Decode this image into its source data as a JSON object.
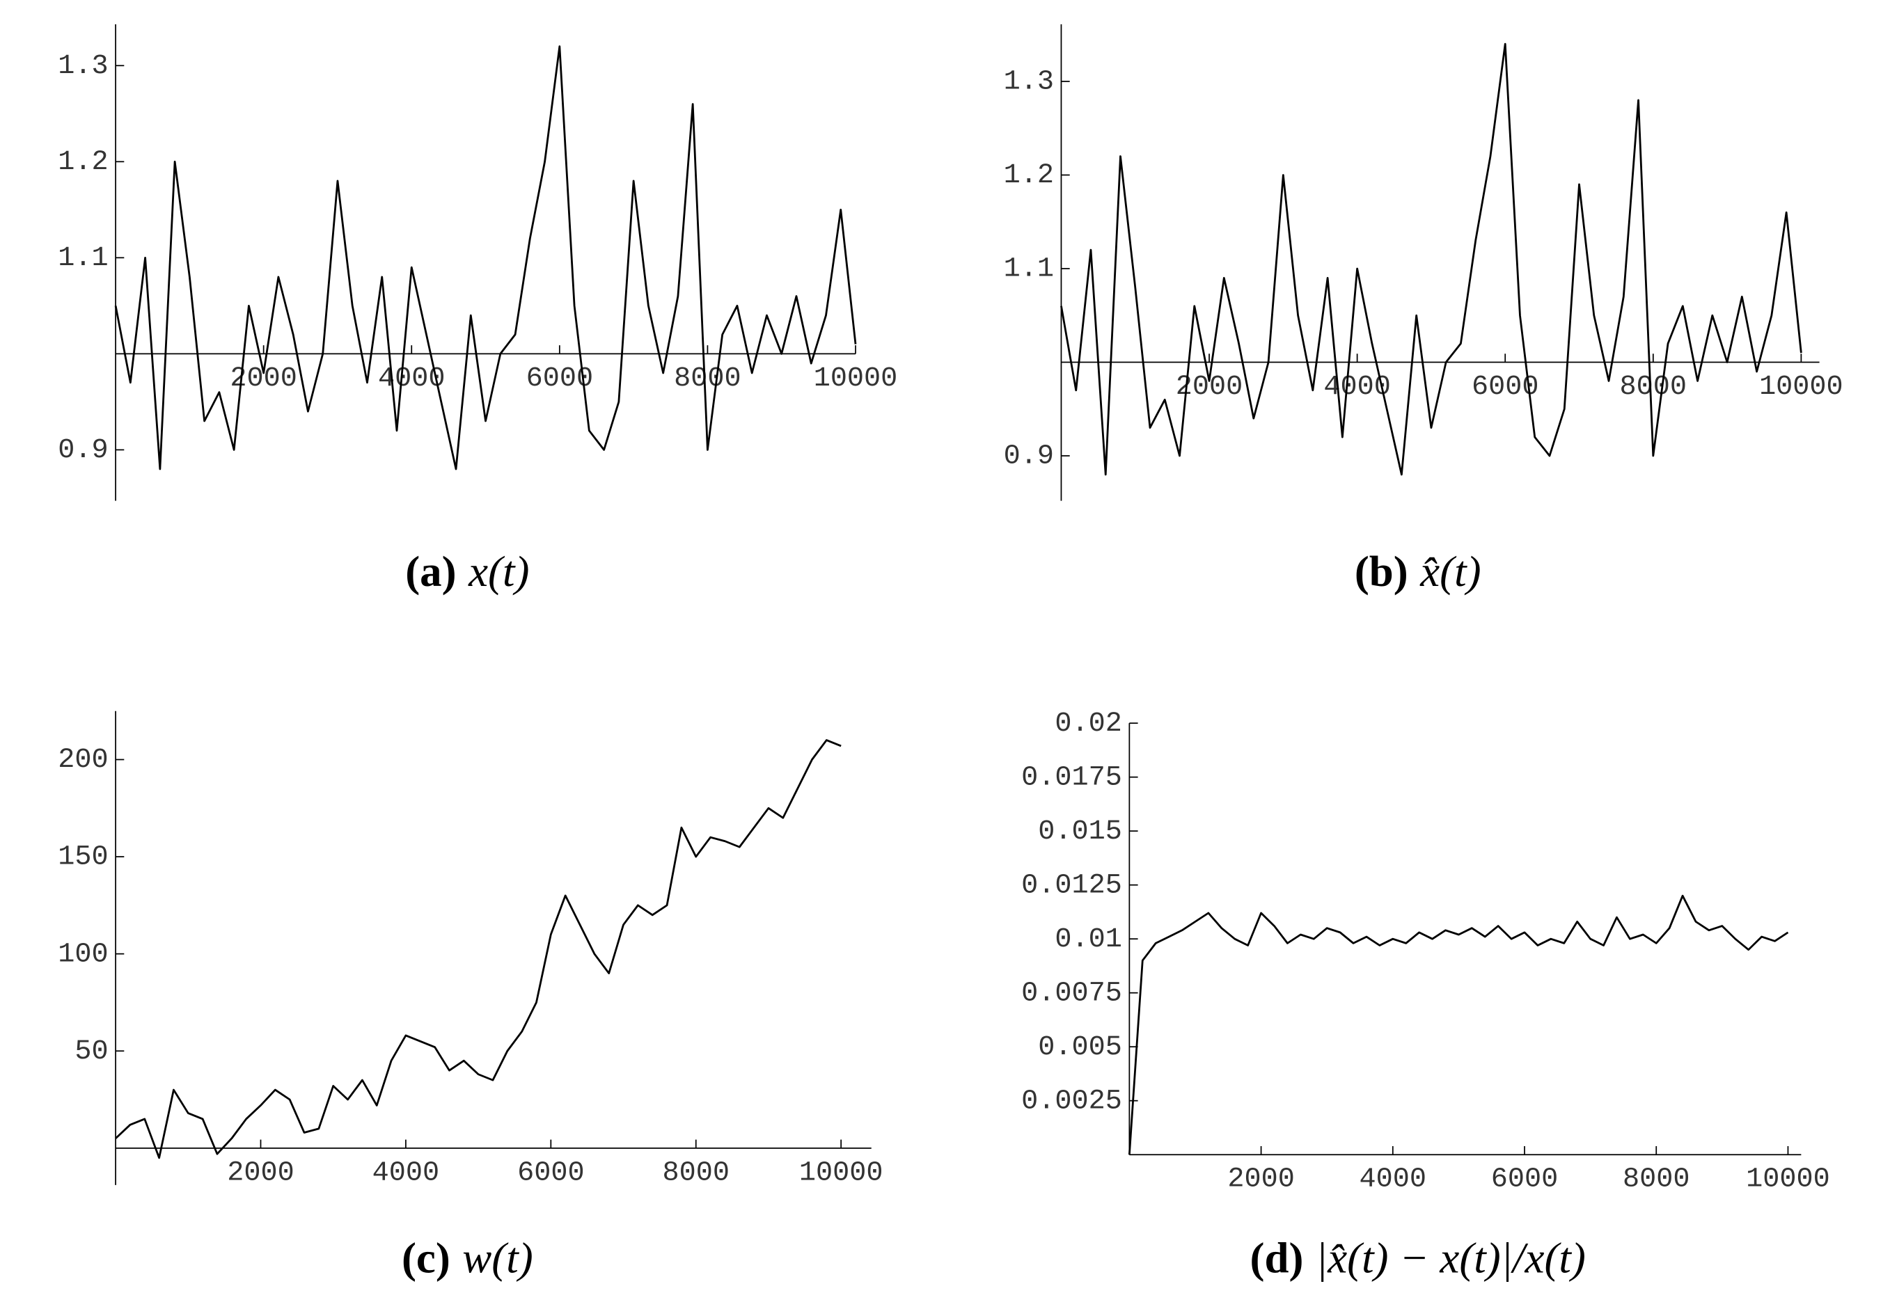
{
  "chart_data": [
    {
      "type": "line",
      "caption_label": "(a)",
      "caption": "x(t)",
      "x": [
        0,
        200,
        400,
        600,
        800,
        1000,
        1200,
        1400,
        1600,
        1800,
        2000,
        2200,
        2400,
        2600,
        2800,
        3000,
        3200,
        3400,
        3600,
        3800,
        4000,
        4200,
        4400,
        4600,
        4800,
        5000,
        5200,
        5400,
        5600,
        5800,
        6000,
        6200,
        6400,
        6600,
        6800,
        7000,
        7200,
        7400,
        7600,
        7800,
        8000,
        8200,
        8400,
        8600,
        8800,
        9000,
        9200,
        9400,
        9600,
        9800,
        10000
      ],
      "values": [
        1.05,
        0.97,
        1.1,
        0.88,
        1.2,
        1.08,
        0.93,
        0.96,
        0.9,
        1.05,
        0.98,
        1.08,
        1.02,
        0.94,
        1.0,
        1.18,
        1.05,
        0.97,
        1.08,
        0.92,
        1.09,
        1.02,
        0.95,
        0.88,
        1.04,
        0.93,
        1.0,
        1.02,
        1.12,
        1.2,
        1.32,
        1.05,
        0.92,
        0.9,
        0.95,
        1.18,
        1.05,
        0.98,
        1.06,
        1.26,
        0.9,
        1.02,
        1.05,
        0.98,
        1.04,
        1.0,
        1.06,
        0.99,
        1.04,
        1.15,
        1.01
      ],
      "color": "#000000",
      "xlim": [
        0,
        10000
      ],
      "ylim": [
        0.847,
        1.343
      ],
      "xticks": [
        2000,
        4000,
        6000,
        8000,
        10000
      ],
      "yticks": [
        0.9,
        1.1,
        1.2,
        1.3
      ],
      "x_axis_position": 1
    },
    {
      "type": "line",
      "caption_label": "(b)",
      "caption": "x̂(t)",
      "x": [
        0,
        200,
        400,
        600,
        800,
        1000,
        1200,
        1400,
        1600,
        1800,
        2000,
        2200,
        2400,
        2600,
        2800,
        3000,
        3200,
        3400,
        3600,
        3800,
        4000,
        4200,
        4400,
        4600,
        4800,
        5000,
        5200,
        5400,
        5600,
        5800,
        6000,
        6200,
        6400,
        6600,
        6800,
        7000,
        7200,
        7400,
        7600,
        7800,
        8000,
        8200,
        8400,
        8600,
        8800,
        9000,
        9200,
        9400,
        9600,
        9800,
        10000
      ],
      "values": [
        1.06,
        0.97,
        1.12,
        0.88,
        1.22,
        1.08,
        0.93,
        0.96,
        0.9,
        1.06,
        0.98,
        1.09,
        1.02,
        0.94,
        1.0,
        1.2,
        1.05,
        0.97,
        1.09,
        0.92,
        1.1,
        1.02,
        0.95,
        0.88,
        1.05,
        0.93,
        1.0,
        1.02,
        1.13,
        1.22,
        1.34,
        1.05,
        0.92,
        0.9,
        0.95,
        1.19,
        1.05,
        0.98,
        1.07,
        1.28,
        0.9,
        1.02,
        1.06,
        0.98,
        1.05,
        1.0,
        1.07,
        0.99,
        1.05,
        1.16,
        1.01
      ],
      "color": "#000000",
      "xlim": [
        0,
        10000
      ],
      "ylim": [
        0.852,
        1.361
      ],
      "xticks": [
        2000,
        4000,
        6000,
        8000,
        10000
      ],
      "yticks": [
        0.9,
        1.1,
        1.2,
        1.3
      ],
      "x_axis_position": 1
    },
    {
      "type": "line",
      "caption_label": "(c)",
      "caption": "w(t)",
      "x": [
        0,
        200,
        400,
        600,
        800,
        1000,
        1200,
        1400,
        1600,
        1800,
        2000,
        2200,
        2400,
        2600,
        2800,
        3000,
        3200,
        3400,
        3600,
        3800,
        4000,
        4200,
        4400,
        4600,
        4800,
        5000,
        5200,
        5400,
        5600,
        5800,
        6000,
        6200,
        6400,
        6600,
        6800,
        7000,
        7200,
        7400,
        7600,
        7800,
        8000,
        8200,
        8400,
        8600,
        8800,
        9000,
        9200,
        9400,
        9600,
        9800,
        10000
      ],
      "values": [
        5,
        12,
        15,
        -5,
        30,
        18,
        15,
        -3,
        5,
        15,
        22,
        30,
        25,
        8,
        10,
        32,
        25,
        35,
        22,
        45,
        58,
        55,
        52,
        40,
        45,
        38,
        35,
        50,
        60,
        75,
        110,
        130,
        115,
        100,
        90,
        115,
        125,
        120,
        125,
        165,
        150,
        160,
        158,
        155,
        165,
        175,
        170,
        185,
        200,
        210,
        207
      ],
      "color": "#000000",
      "xlim": [
        0,
        10200
      ],
      "ylim": [
        -19,
        225
      ],
      "xticks": [
        2000,
        4000,
        6000,
        8000,
        10000
      ],
      "yticks": [
        50,
        100,
        150,
        200
      ],
      "x_axis_position": 0
    },
    {
      "type": "line",
      "caption_label": "(d)",
      "caption": "|x̂(t) − x(t)|/x(t)",
      "x": [
        0,
        200,
        400,
        600,
        800,
        1000,
        1200,
        1400,
        1600,
        1800,
        2000,
        2200,
        2400,
        2600,
        2800,
        3000,
        3200,
        3400,
        3600,
        3800,
        4000,
        4200,
        4400,
        4600,
        4800,
        5000,
        5200,
        5400,
        5600,
        5800,
        6000,
        6200,
        6400,
        6600,
        6800,
        7000,
        7200,
        7400,
        7600,
        7800,
        8000,
        8200,
        8400,
        8600,
        8800,
        9000,
        9200,
        9400,
        9600,
        9800,
        10000
      ],
      "values": [
        0,
        0.009,
        0.0098,
        0.0101,
        0.0104,
        0.0108,
        0.0112,
        0.0105,
        0.01,
        0.0097,
        0.0112,
        0.0106,
        0.0098,
        0.0102,
        0.01,
        0.0105,
        0.0103,
        0.0098,
        0.0101,
        0.0097,
        0.01,
        0.0098,
        0.0103,
        0.01,
        0.0104,
        0.0102,
        0.0105,
        0.0101,
        0.0106,
        0.01,
        0.0103,
        0.0097,
        0.01,
        0.0098,
        0.0108,
        0.01,
        0.0097,
        0.011,
        0.01,
        0.0102,
        0.0098,
        0.0105,
        0.012,
        0.0108,
        0.0104,
        0.0106,
        0.01,
        0.0095,
        0.0101,
        0.0099,
        0.0103
      ],
      "color": "#000000",
      "xlim": [
        0,
        10200
      ],
      "ylim": [
        0,
        0.02
      ],
      "xticks": [
        2000,
        4000,
        6000,
        8000,
        10000
      ],
      "yticks": [
        0.0025,
        0.005,
        0.0075,
        0.01,
        0.0125,
        0.015,
        0.0175,
        0.02
      ],
      "x_axis_position": 0
    }
  ]
}
